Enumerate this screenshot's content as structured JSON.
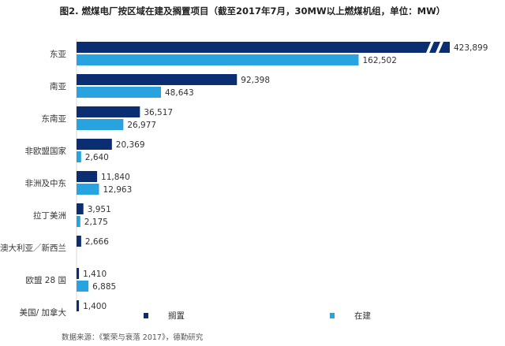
{
  "chart_data": {
    "type": "bar",
    "orientation": "horizontal",
    "title": "图2. 燃煤电厂按区域在建及搁置项目（截至2017年7月，30MW以上燃煤机组，单位：MW）",
    "categories": [
      "东亚",
      "南亚",
      "东南亚",
      "非欧盟国家",
      "非洲及中东",
      "拉丁美洲",
      "澳大利亚／新西兰",
      "欧盟 28 国",
      "美国/ 加拿大"
    ],
    "series": [
      {
        "name": "搁置",
        "color": "#0b2d71",
        "values": [
          423899,
          92398,
          36517,
          20369,
          11840,
          3951,
          2666,
          1410,
          1400
        ],
        "labels": [
          "423,899",
          "92,398",
          "36,517",
          "20,369",
          "11,840",
          "3,951",
          "2,666",
          "1,410",
          "1,400"
        ]
      },
      {
        "name": "在建",
        "color": "#29a3e0",
        "values": [
          162502,
          48643,
          26977,
          2640,
          12963,
          2175,
          0,
          6885,
          0
        ],
        "labels": [
          "162,502",
          "48,643",
          "26,977",
          "2,640",
          "12,963",
          "2,175",
          "",
          "6,885",
          ""
        ]
      }
    ],
    "axis_break": true,
    "grid": false,
    "legend_position": "bottom",
    "source_note": "数据来源：《繁荣与衰落 2017》，德勤研究"
  }
}
